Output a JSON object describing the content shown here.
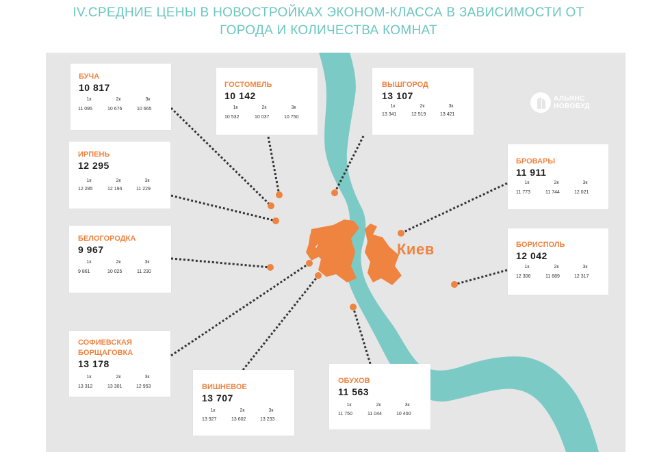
{
  "header": {
    "title_line1": "IV.СРЕДНИЕ ЦЕНЫ В НОВОСТРОЙКАХ ЭКОНОМ-КЛАССА В ЗАВИСИМОСТИ ОТ",
    "title_line2": "ГОРОДА И КОЛИЧЕСТВА КОМНАТ"
  },
  "brand": {
    "line1": "АЛЬЯНС",
    "line2": "НОВОБУД"
  },
  "map": {
    "city_label": "Киев"
  },
  "room_labels": [
    "1к",
    "2к",
    "3к"
  ],
  "cards": {
    "bucha": {
      "name": "БУЧА",
      "price": "10 817",
      "r1": "11 095",
      "r2": "10 676",
      "r3": "10 665"
    },
    "gostomel": {
      "name": "ГОСТОМЕЛЬ",
      "price": "10 142",
      "r1": "10 532",
      "r2": "10 037",
      "r3": "10 750"
    },
    "vyshgorod": {
      "name": "ВЫШГОРОД",
      "price": "13 107",
      "r1": "13 341",
      "r2": "12 519",
      "r3": "13 421"
    },
    "irpen": {
      "name": "ИРПЕНЬ",
      "price": "12 295",
      "r1": "12 285",
      "r2": "12 194",
      "r3": "11 229"
    },
    "brovary": {
      "name": "БРОВАРЫ",
      "price": "11 911",
      "r1": "11 773",
      "r2": "11 744",
      "r3": "12 021"
    },
    "belogorodka": {
      "name": "БЕЛОГОРОДКА",
      "price": "9 967",
      "r1": "9 861",
      "r2": "10 025",
      "r3": "11 230"
    },
    "borispol": {
      "name": "БОРИСПОЛЬ",
      "price": "12 042",
      "r1": "12 306",
      "r2": "11 889",
      "r3": "12 317"
    },
    "sofievskaya": {
      "name": "СОФИЕВСКАЯ",
      "name2": "БОРЩАГОВКА",
      "price": "13 178",
      "r1": "13 312",
      "r2": "13 301",
      "r3": "12 953"
    },
    "vishnevoe": {
      "name": "ВИШНЕВОЕ",
      "price": "13 707",
      "r1": "13 927",
      "r2": "13 602",
      "r3": "13 233"
    },
    "obukhov": {
      "name": "ОБУХОВ",
      "price": "11 563",
      "r1": "11 750",
      "r2": "11 044",
      "r3": "10 400"
    }
  },
  "colors": {
    "accent": "#ef8340",
    "title": "#6cc6c0",
    "river": "#7ccac5",
    "map_bg": "#e6e6e7",
    "connector": "#333333"
  }
}
